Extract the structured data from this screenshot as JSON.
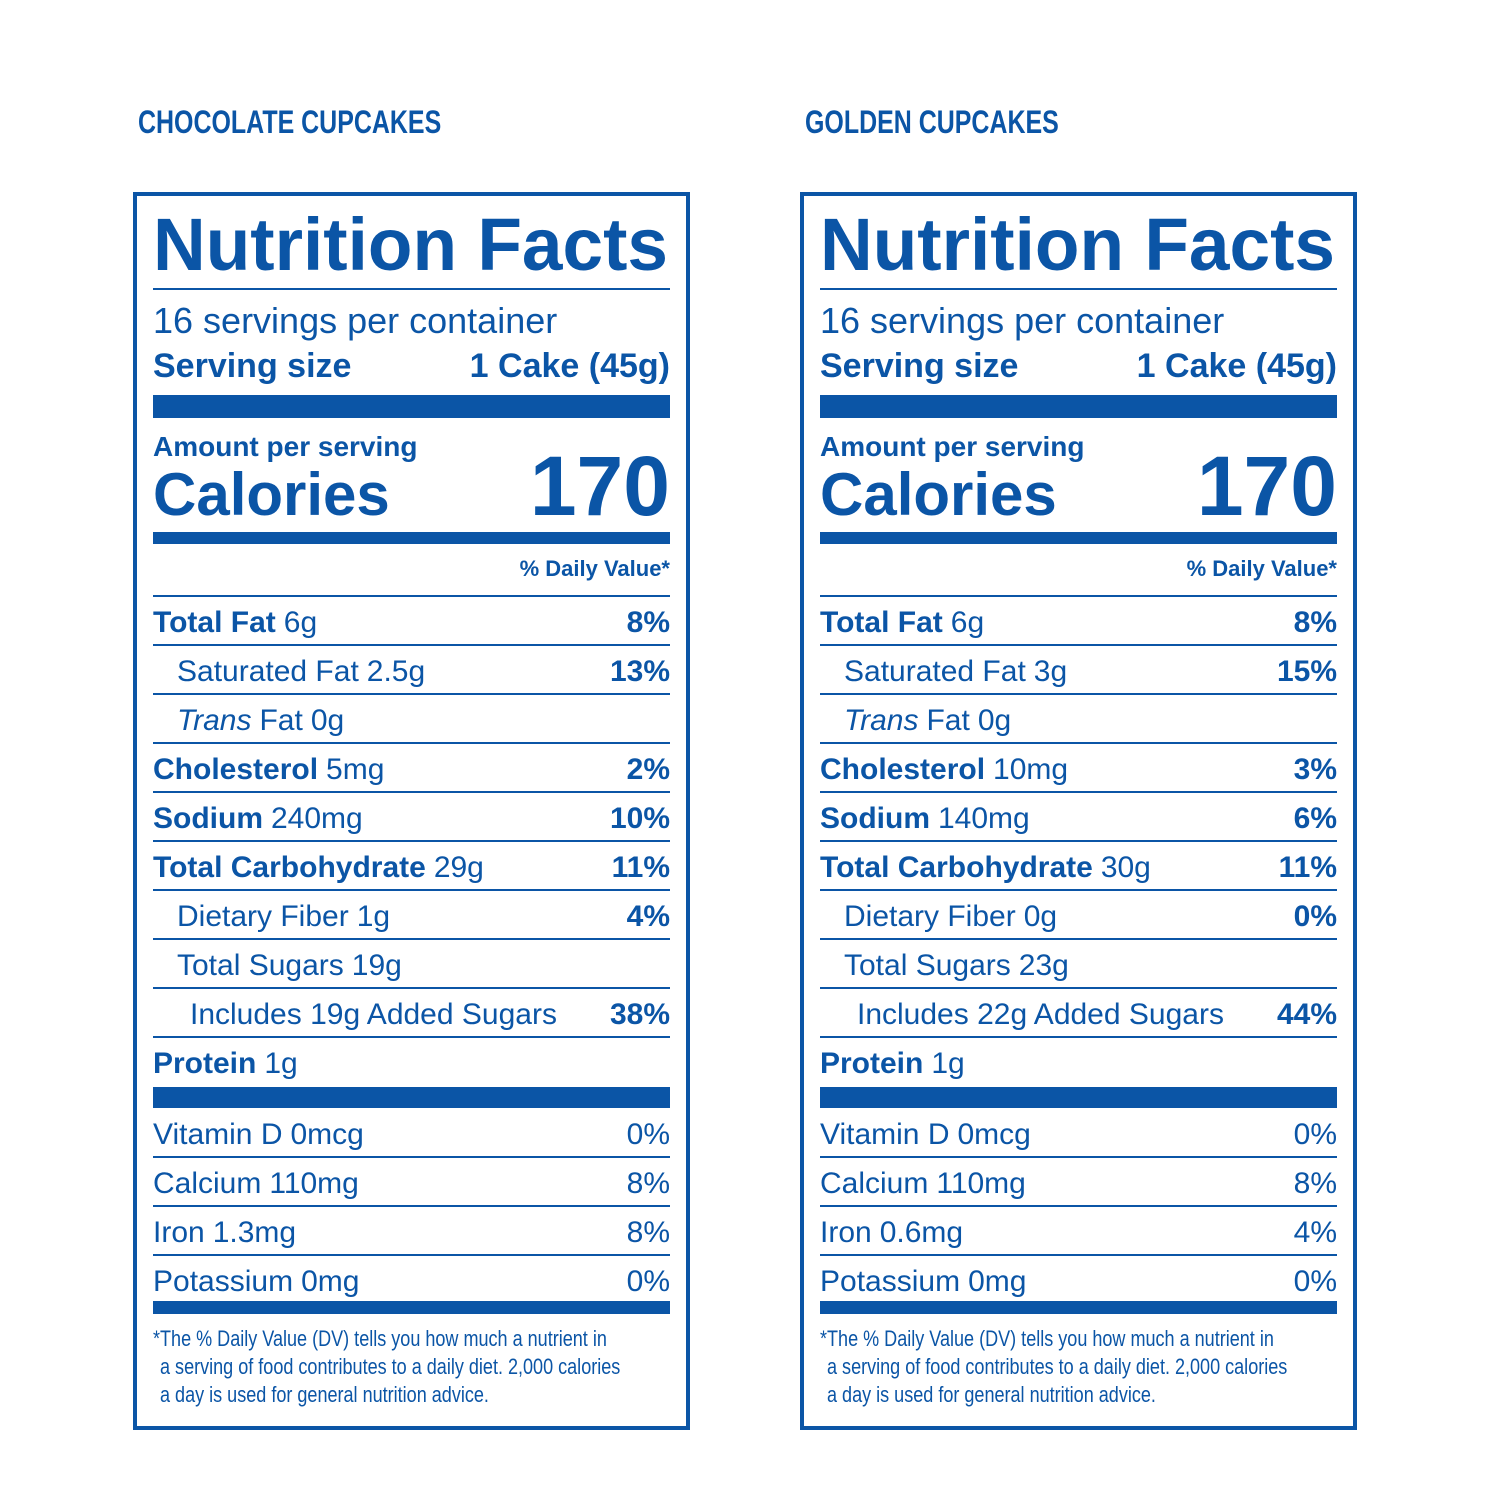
{
  "panels": [
    {
      "product": "CHOCOLATE CUPCAKES",
      "title": "Nutrition Facts",
      "servings": "16 servings per container",
      "serving_size_label": "Serving size",
      "serving_size": "1 Cake (45g)",
      "amount_per_serving": "Amount per serving",
      "calories_label": "Calories",
      "calories": "170",
      "daily_value_header": "% Daily Value*",
      "nutrients": [
        {
          "name": "Total Fat",
          "amount": "6g",
          "dv": "8%",
          "sub": [
            {
              "name": "Saturated Fat",
              "amount": "2.5g",
              "dv": "13%"
            },
            {
              "name_italic": "Trans",
              "name": "Fat",
              "amount": "0g"
            }
          ]
        },
        {
          "name": "Cholesterol",
          "amount": "5mg",
          "dv": "2%"
        },
        {
          "name": "Sodium",
          "amount": "240mg",
          "dv": "10%"
        },
        {
          "name": "Total Carbohydrate",
          "amount": "29g",
          "dv": "11%",
          "sub": [
            {
              "name": "Dietary Fiber",
              "amount": "1g",
              "dv": "4%"
            },
            {
              "name": "Total Sugars",
              "amount": "19g",
              "sub": [
                {
                  "name": "Includes 19g Added Sugars",
                  "dv": "38%"
                }
              ]
            }
          ]
        },
        {
          "name": "Protein",
          "amount": "1g"
        }
      ],
      "vitamins": [
        {
          "name": "Vitamin D",
          "amount": "0mcg",
          "dv": "0%"
        },
        {
          "name": "Calcium",
          "amount": "110mg",
          "dv": "8%"
        },
        {
          "name": "Iron",
          "amount": "1.3mg",
          "dv": "8%"
        },
        {
          "name": "Potassium",
          "amount": "0mg",
          "dv": "0%"
        }
      ],
      "footnote": [
        "*The % Daily Value (DV) tells you how much a nutrient in",
        "a serving of food contributes to a daily diet. 2,000 calories",
        "a day is used for general nutrition advice."
      ]
    },
    {
      "product": "GOLDEN CUPCAKES",
      "title": "Nutrition Facts",
      "servings": "16 servings per container",
      "serving_size_label": "Serving size",
      "serving_size": "1 Cake (45g)",
      "amount_per_serving": "Amount per serving",
      "calories_label": "Calories",
      "calories": "170",
      "daily_value_header": "% Daily Value*",
      "nutrients": [
        {
          "name": "Total Fat",
          "amount": "6g",
          "dv": "8%",
          "sub": [
            {
              "name": "Saturated Fat",
              "amount": "3g",
              "dv": "15%"
            },
            {
              "name_italic": "Trans",
              "name": "Fat",
              "amount": "0g"
            }
          ]
        },
        {
          "name": "Cholesterol",
          "amount": "10mg",
          "dv": "3%"
        },
        {
          "name": "Sodium",
          "amount": "140mg",
          "dv": "6%"
        },
        {
          "name": "Total Carbohydrate",
          "amount": "30g",
          "dv": "11%",
          "sub": [
            {
              "name": "Dietary Fiber",
              "amount": "0g",
              "dv": "0%"
            },
            {
              "name": "Total Sugars",
              "amount": "23g",
              "sub": [
                {
                  "name": "Includes 22g Added Sugars",
                  "dv": "44%"
                }
              ]
            }
          ]
        },
        {
          "name": "Protein",
          "amount": "1g"
        }
      ],
      "vitamins": [
        {
          "name": "Vitamin D",
          "amount": "0mcg",
          "dv": "0%"
        },
        {
          "name": "Calcium",
          "amount": "110mg",
          "dv": "8%"
        },
        {
          "name": "Iron",
          "amount": "0.6mg",
          "dv": "4%"
        },
        {
          "name": "Potassium",
          "amount": "0mg",
          "dv": "0%"
        }
      ],
      "footnote": [
        "*The % Daily Value (DV) tells you how much a nutrient in",
        "a serving of food contributes to a daily diet. 2,000 calories",
        "a day is used for general nutrition advice."
      ]
    }
  ]
}
